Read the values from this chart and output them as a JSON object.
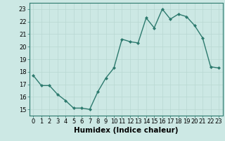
{
  "x": [
    0,
    1,
    2,
    3,
    4,
    5,
    6,
    7,
    8,
    9,
    10,
    11,
    12,
    13,
    14,
    15,
    16,
    17,
    18,
    19,
    20,
    21,
    22,
    23
  ],
  "y": [
    17.7,
    16.9,
    16.9,
    16.2,
    15.7,
    15.1,
    15.1,
    15.0,
    16.4,
    17.5,
    18.3,
    20.6,
    20.4,
    20.3,
    22.3,
    21.5,
    23.0,
    22.2,
    22.6,
    22.4,
    21.7,
    20.7,
    18.4,
    18.3
  ],
  "line_color": "#2d7a6e",
  "marker": "D",
  "marker_size": 2.0,
  "bg_color": "#cce8e4",
  "grid_major_color": "#b8d8d2",
  "grid_minor_color": "#d4ecea",
  "xlabel": "Humidex (Indice chaleur)",
  "ylim": [
    14.5,
    23.5
  ],
  "xlim": [
    -0.5,
    23.5
  ],
  "yticks": [
    15,
    16,
    17,
    18,
    19,
    20,
    21,
    22,
    23
  ],
  "xticks": [
    0,
    1,
    2,
    3,
    4,
    5,
    6,
    7,
    8,
    9,
    10,
    11,
    12,
    13,
    14,
    15,
    16,
    17,
    18,
    19,
    20,
    21,
    22,
    23
  ],
  "tick_label_size": 6.0,
  "xlabel_size": 7.5,
  "linewidth": 1.0
}
